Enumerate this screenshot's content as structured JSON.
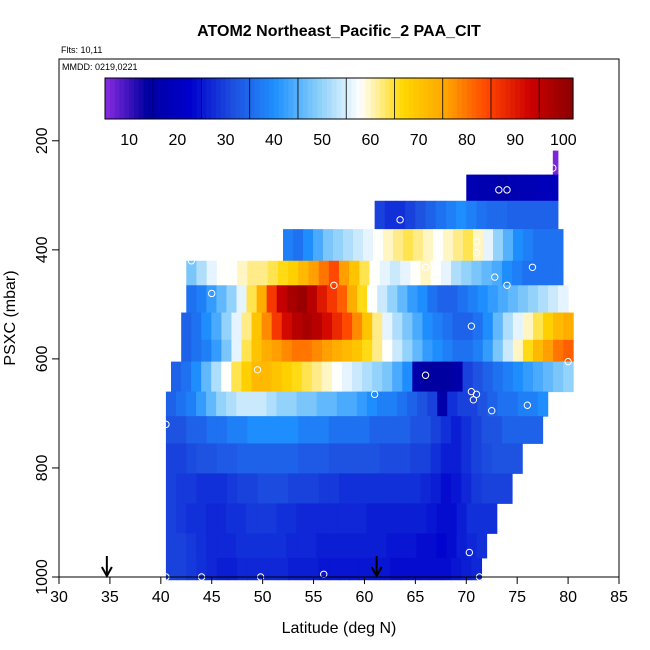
{
  "chart_data": {
    "type": "heatmap",
    "title": "ATOM2 Northeast_Pacific_2 PAA_CIT",
    "flights_label": "Flts: 10,11",
    "date_label": "MMDD: 0219,0221",
    "xlabel": "Latitude (deg N)",
    "ylabel": "PSXC (mbar)",
    "xlim": [
      30,
      85
    ],
    "ylim": [
      1000,
      50
    ],
    "y_reversed": true,
    "xticks": [
      30,
      35,
      40,
      45,
      50,
      55,
      60,
      65,
      70,
      75,
      80,
      85
    ],
    "yticks": [
      200,
      400,
      600,
      800,
      1000
    ],
    "colorbar": {
      "range": [
        5,
        102
      ],
      "ticks": [
        10,
        20,
        30,
        40,
        50,
        60,
        70,
        80,
        90,
        100
      ],
      "colors": [
        "#8a2be2",
        "#0000a0",
        "#0000cd",
        "#1e4fe0",
        "#1e90ff",
        "#87cefa",
        "#ffffff",
        "#ffd700",
        "#ffa500",
        "#ff4500",
        "#cc0000",
        "#8b0000"
      ]
    },
    "bands": [
      {
        "p_top": 218,
        "p_bot": 262,
        "lat_start": 78.5,
        "lat_end": 79.0,
        "values": [
          6
        ]
      },
      {
        "p_top": 262,
        "p_bot": 310,
        "lat_start": 70.0,
        "lat_end": 79.0,
        "values": [
          18,
          17,
          17,
          16,
          17,
          18,
          18,
          19,
          19
        ]
      },
      {
        "p_top": 310,
        "p_bot": 362,
        "lat_start": 61.0,
        "lat_end": 79.0,
        "values": [
          30,
          28,
          28,
          30,
          32,
          34,
          36,
          38,
          40,
          38,
          36,
          35,
          35,
          34,
          34,
          34,
          34,
          34
        ]
      },
      {
        "p_top": 362,
        "p_bot": 420,
        "lat_start": 52.0,
        "lat_end": 79.5,
        "values": [
          38,
          36,
          40,
          44,
          48,
          50,
          52,
          54,
          56,
          58,
          60,
          62,
          64,
          62,
          60,
          58,
          60,
          62,
          64,
          60,
          56,
          50,
          45,
          40,
          38,
          36,
          36,
          36
        ]
      },
      {
        "p_top": 420,
        "p_bot": 465,
        "lat_start": 42.5,
        "lat_end": 79.5,
        "values": [
          48,
          52,
          56,
          58,
          58,
          60,
          62,
          62,
          64,
          66,
          68,
          72,
          76,
          80,
          84,
          76,
          70,
          64,
          58,
          56,
          54,
          56,
          58,
          60,
          58,
          56,
          52,
          50,
          48,
          46,
          44,
          40,
          38,
          36,
          36,
          36,
          36
        ]
      },
      {
        "p_top": 465,
        "p_bot": 515,
        "lat_start": 42.5,
        "lat_end": 80.0,
        "values": [
          36,
          38,
          42,
          46,
          50,
          56,
          64,
          74,
          86,
          94,
          98,
          100,
          96,
          90,
          86,
          82,
          74,
          66,
          58,
          54,
          50,
          46,
          42,
          40,
          36,
          34,
          34,
          36,
          38,
          40,
          42,
          44,
          46,
          48,
          50,
          52,
          54,
          56
        ]
      },
      {
        "p_top": 515,
        "p_bot": 565,
        "lat_start": 42.0,
        "lat_end": 80.5,
        "values": [
          34,
          36,
          40,
          44,
          50,
          56,
          62,
          70,
          78,
          86,
          92,
          96,
          98,
          96,
          92,
          88,
          84,
          78,
          70,
          62,
          56,
          52,
          48,
          44,
          40,
          38,
          36,
          34,
          34,
          36,
          40,
          46,
          52,
          56,
          60,
          64,
          68,
          72,
          74
        ]
      },
      {
        "p_top": 565,
        "p_bot": 605,
        "lat_start": 42.0,
        "lat_end": 80.5,
        "values": [
          34,
          36,
          38,
          42,
          48,
          56,
          64,
          70,
          74,
          76,
          78,
          80,
          80,
          78,
          76,
          74,
          72,
          70,
          66,
          62,
          58,
          54,
          50,
          46,
          42,
          40,
          38,
          36,
          36,
          38,
          42,
          48,
          54,
          60,
          66,
          72,
          76,
          80,
          82
        ]
      },
      {
        "p_top": 605,
        "p_bot": 660,
        "lat_start": 41.0,
        "lat_end": 80.5,
        "values": [
          34,
          36,
          40,
          46,
          52,
          58,
          64,
          68,
          72,
          72,
          70,
          68,
          66,
          64,
          62,
          60,
          58,
          56,
          54,
          52,
          50,
          48,
          44,
          40,
          16,
          14,
          14,
          14,
          16,
          30,
          32,
          34,
          36,
          38,
          40,
          42,
          44,
          46,
          48,
          50
        ]
      },
      {
        "p_top": 660,
        "p_bot": 705,
        "lat_start": 40.5,
        "lat_end": 78.0,
        "values": [
          34,
          36,
          38,
          42,
          46,
          50,
          52,
          54,
          54,
          54,
          52,
          50,
          50,
          48,
          48,
          46,
          46,
          44,
          44,
          42,
          40,
          38,
          38,
          36,
          34,
          32,
          30,
          16,
          28,
          30,
          30,
          32,
          34,
          36,
          36,
          38,
          38,
          40
        ]
      },
      {
        "p_top": 705,
        "p_bot": 755,
        "lat_start": 40.5,
        "lat_end": 77.5,
        "values": [
          32,
          32,
          34,
          34,
          36,
          36,
          38,
          38,
          40,
          40,
          40,
          40,
          40,
          38,
          38,
          38,
          36,
          36,
          36,
          36,
          34,
          34,
          34,
          34,
          32,
          32,
          30,
          28,
          26,
          28,
          30,
          32,
          32,
          34,
          34,
          34,
          34
        ]
      },
      {
        "p_top": 755,
        "p_bot": 810,
        "lat_start": 40.5,
        "lat_end": 75.5,
        "values": [
          30,
          30,
          31,
          32,
          32,
          33,
          33,
          34,
          34,
          34,
          34,
          34,
          34,
          33,
          33,
          33,
          32,
          32,
          32,
          32,
          32,
          31,
          31,
          31,
          30,
          30,
          28,
          26,
          26,
          28,
          30,
          31,
          32,
          32,
          32
        ]
      },
      {
        "p_top": 810,
        "p_bot": 865,
        "lat_start": 40.5,
        "lat_end": 74.5,
        "values": [
          30,
          29,
          29,
          28,
          28,
          28,
          29,
          30,
          30,
          31,
          31,
          31,
          30,
          30,
          30,
          29,
          29,
          28,
          28,
          28,
          28,
          28,
          28,
          28,
          28,
          27,
          26,
          24,
          25,
          27,
          29,
          30,
          30,
          30
        ]
      },
      {
        "p_top": 865,
        "p_bot": 920,
        "lat_start": 40.5,
        "lat_end": 73.0,
        "values": [
          30,
          29,
          28,
          28,
          27,
          27,
          28,
          28,
          29,
          29,
          29,
          28,
          28,
          27,
          27,
          27,
          27,
          27,
          27,
          27,
          26,
          26,
          26,
          26,
          26,
          26,
          25,
          24,
          24,
          26,
          28,
          28,
          28
        ]
      },
      {
        "p_top": 920,
        "p_bot": 965,
        "lat_start": 40.5,
        "lat_end": 72.0,
        "values": [
          30,
          30,
          29,
          28,
          27,
          27,
          27,
          28,
          28,
          28,
          28,
          28,
          27,
          27,
          27,
          26,
          26,
          26,
          26,
          26,
          26,
          26,
          25,
          25,
          25,
          24,
          24,
          23,
          24,
          26,
          27,
          28
        ]
      },
      {
        "p_top": 965,
        "p_bot": 1005,
        "lat_start": 40.5,
        "lat_end": 71.5,
        "values": [
          30,
          30,
          29,
          28,
          27,
          26,
          26,
          27,
          27,
          27,
          27,
          27,
          26,
          26,
          26,
          25,
          25,
          25,
          25,
          25,
          25,
          25,
          24,
          24,
          24,
          24,
          24,
          24,
          25,
          26,
          27
        ]
      }
    ],
    "markers": [
      {
        "lat": 78.5,
        "p": 250
      },
      {
        "lat": 73.2,
        "p": 290
      },
      {
        "lat": 74.0,
        "p": 290
      },
      {
        "lat": 63.5,
        "p": 345
      },
      {
        "lat": 71.0,
        "p": 385
      },
      {
        "lat": 71.0,
        "p": 405
      },
      {
        "lat": 43.0,
        "p": 420
      },
      {
        "lat": 66.0,
        "p": 432
      },
      {
        "lat": 72.8,
        "p": 450
      },
      {
        "lat": 76.5,
        "p": 432
      },
      {
        "lat": 74.0,
        "p": 465
      },
      {
        "lat": 45.0,
        "p": 480
      },
      {
        "lat": 57.0,
        "p": 465
      },
      {
        "lat": 70.5,
        "p": 540
      },
      {
        "lat": 49.5,
        "p": 620
      },
      {
        "lat": 80.0,
        "p": 605
      },
      {
        "lat": 66.0,
        "p": 630
      },
      {
        "lat": 61.0,
        "p": 665
      },
      {
        "lat": 70.5,
        "p": 660
      },
      {
        "lat": 71.0,
        "p": 665
      },
      {
        "lat": 70.7,
        "p": 675
      },
      {
        "lat": 72.5,
        "p": 695
      },
      {
        "lat": 76.0,
        "p": 685
      },
      {
        "lat": 40.5,
        "p": 720
      },
      {
        "lat": 70.3,
        "p": 955
      },
      {
        "lat": 40.5,
        "p": 1000
      },
      {
        "lat": 44.0,
        "p": 1000
      },
      {
        "lat": 49.8,
        "p": 1000
      },
      {
        "lat": 56.0,
        "p": 995
      },
      {
        "lat": 71.3,
        "p": 1000
      }
    ],
    "arrows": [
      34.7,
      61.2
    ]
  }
}
